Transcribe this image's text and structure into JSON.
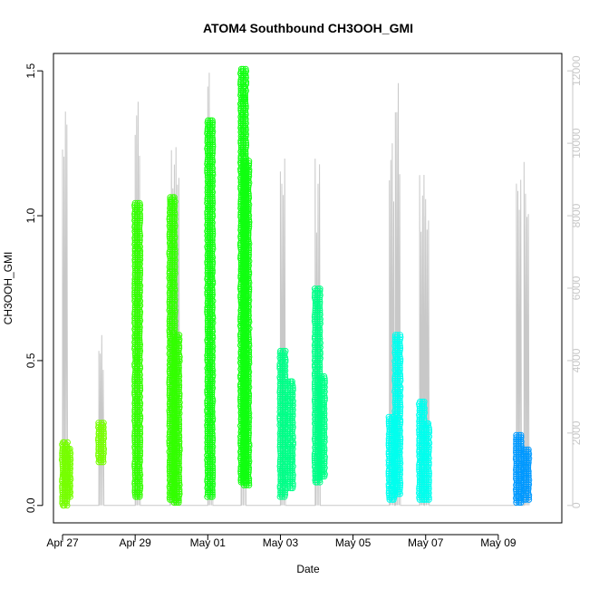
{
  "chart_data": {
    "type": "scatter",
    "title": "ATOM4 Southbound CH3OOH_GMI",
    "xlabel": "Date",
    "ylabel": "CH3OOH_GMI",
    "x_ticks": [
      "Apr 27",
      "Apr 29",
      "May 01",
      "May 03",
      "May 05",
      "May 07",
      "May 09"
    ],
    "y_ticks": [
      "0.0",
      "0.5",
      "1.0",
      "1.5"
    ],
    "y2_ticks": [
      "0",
      "2000",
      "4000",
      "6000",
      "8000",
      "10000",
      "12000"
    ],
    "xlim": [
      "2018-04-26T18:00",
      "2018-05-10T18:00"
    ],
    "ylim": [
      -0.06,
      1.56
    ],
    "y2lim": [
      -480,
      12480
    ],
    "grid": false,
    "secondary_axis_color": "#c8c8c8",
    "series": [
      {
        "color": "#77ff00",
        "values": [
          [
            "2018-04-27T00:00",
            0.0,
            0.22
          ],
          [
            "2018-04-27T02:00",
            0.03,
            0.2
          ],
          [
            "2018-04-28T00:00",
            0.15,
            0.29
          ]
        ]
      },
      {
        "color": "#33ff00",
        "values": [
          [
            "2018-04-29T00:00",
            0.03,
            1.05
          ],
          [
            "2018-04-29T23:00",
            0.02,
            1.07
          ],
          [
            "2018-04-30T02:00",
            0.01,
            0.59
          ]
        ]
      },
      {
        "color": "#11ff11",
        "values": [
          [
            "2018-05-01T00:00",
            0.03,
            1.33
          ],
          [
            "2018-05-01T22:00",
            0.08,
            1.51
          ],
          [
            "2018-05-02T00:00",
            0.07,
            1.19
          ]
        ]
      },
      {
        "color": "#00ff88",
        "values": [
          [
            "2018-05-03T00:00",
            0.03,
            0.54
          ],
          [
            "2018-05-03T05:00",
            0.06,
            0.43
          ],
          [
            "2018-05-03T23:00",
            0.08,
            0.75
          ],
          [
            "2018-05-04T02:00",
            0.1,
            0.45
          ]
        ]
      },
      {
        "color": "#00ffee",
        "values": [
          [
            "2018-05-06T00:00",
            0.02,
            0.31
          ],
          [
            "2018-05-06T04:00",
            0.04,
            0.59
          ],
          [
            "2018-05-06T20:00",
            0.02,
            0.36
          ],
          [
            "2018-05-06T23:00",
            0.02,
            0.29
          ]
        ]
      },
      {
        "color": "#0099ff",
        "values": [
          [
            "2018-05-09T12:00",
            0.01,
            0.25
          ],
          [
            "2018-05-09T17:00",
            0.02,
            0.2
          ]
        ]
      }
    ],
    "altitude_line": {
      "color": "#c8c8c8",
      "axis": "secondary",
      "segments": [
        [
          "2018-04-27T00:00",
          11200
        ],
        [
          "2018-04-28T00:00",
          4800
        ],
        [
          "2018-04-29T00:00",
          12000
        ],
        [
          "2018-04-29T23:00",
          10000
        ],
        [
          "2018-04-30T02:00",
          10300
        ],
        [
          "2018-05-01T00:00",
          12100
        ],
        [
          "2018-05-01T22:00",
          12000
        ],
        [
          "2018-05-03T00:00",
          10300
        ],
        [
          "2018-05-03T23:00",
          10000
        ],
        [
          "2018-05-06T00:00",
          10400
        ],
        [
          "2018-05-06T04:00",
          11900
        ],
        [
          "2018-05-06T20:00",
          9700
        ],
        [
          "2018-05-06T23:00",
          9400
        ],
        [
          "2018-05-09T12:00",
          9200
        ],
        [
          "2018-05-09T17:00",
          9600
        ]
      ]
    }
  }
}
